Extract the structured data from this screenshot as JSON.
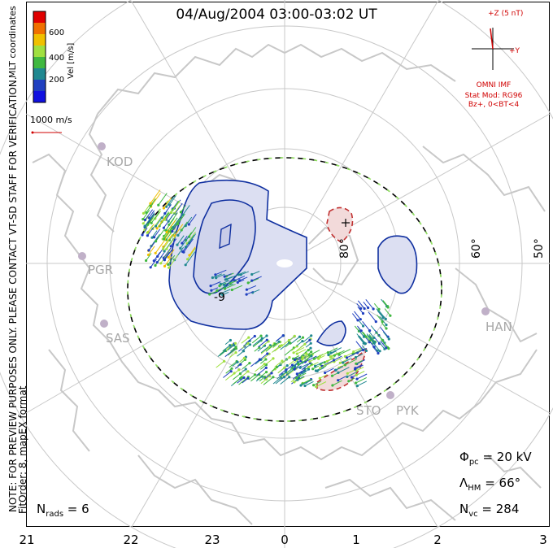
{
  "title": "04/Aug/2004 03:00-03:02 UT",
  "side_notes": {
    "note": "NOTE: FOR PREVIEW PURPOSES ONLY. PLEASE CONTACT VT-SD STAFF FOR VERIFICATION.",
    "fit": "FitOrder: 8, mapEX format",
    "coords": "MLT coordinates"
  },
  "colorbar": {
    "title": "Vel [m/s]",
    "ticks": [
      "600",
      "400",
      "200"
    ],
    "colors": [
      "#e00000",
      "#f07000",
      "#f0c000",
      "#a0e040",
      "#40b840",
      "#208890",
      "#2040c0",
      "#1010e0"
    ]
  },
  "reference_vector": {
    "label": "1000 m/s",
    "color": "#d00000"
  },
  "imf": {
    "z_label": "+Z (5 nT)",
    "y_label": "+Y",
    "source": "OMNI IMF",
    "model": "Stat Mod: RG96",
    "condition": "Bz+, 0<BT<4",
    "color": "#d00000"
  },
  "stations": [
    "KOD",
    "PGR",
    "SAS",
    "HAN",
    "STO",
    "PYK"
  ],
  "lat_labels": [
    "80°",
    "60°",
    "50°"
  ],
  "contour_labels": [
    "-9"
  ],
  "stats": {
    "phi_pc": "20 kV",
    "lambda_hm": "66°",
    "n_vc": "284",
    "n_rads": "6"
  },
  "mlt_ticks": [
    "21",
    "22",
    "23",
    "0",
    "1",
    "2",
    "3"
  ],
  "colors": {
    "negative_contour": "#1030a0",
    "positive_contour": "#c03030",
    "negative_fill": "#d8daf0",
    "positive_fill": "#f0d8d8",
    "coastline": "#c8c8c8",
    "grid": "#c8c8c8"
  }
}
